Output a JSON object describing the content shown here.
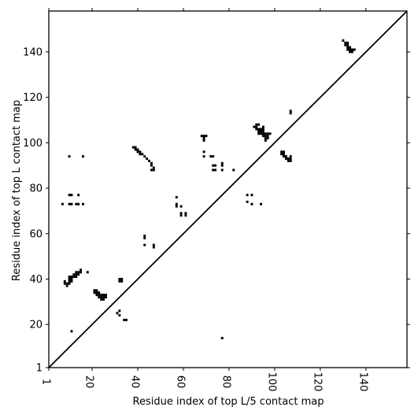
{
  "chart_data": {
    "type": "scatter",
    "xlabel": "Residue index of top L/5 contact map",
    "ylabel": "Residue index of top L contact map",
    "xlim": [
      1,
      158
    ],
    "ylim": [
      1,
      158
    ],
    "xticks": [
      1,
      20,
      40,
      60,
      80,
      100,
      120,
      140
    ],
    "yticks": [
      1,
      20,
      40,
      60,
      80,
      100,
      120,
      140
    ],
    "diagonal": true,
    "marker": "square",
    "color": "#000000",
    "points": [
      [
        7,
        73
      ],
      [
        10,
        73
      ],
      [
        11,
        73
      ],
      [
        13,
        73
      ],
      [
        14,
        73
      ],
      [
        16,
        73
      ],
      [
        10,
        77
      ],
      [
        11,
        77
      ],
      [
        14,
        77
      ],
      [
        10,
        94
      ],
      [
        16,
        94
      ],
      [
        18,
        43
      ],
      [
        8,
        38
      ],
      [
        8,
        39
      ],
      [
        9,
        37
      ],
      [
        9,
        38
      ],
      [
        10,
        38
      ],
      [
        10,
        39
      ],
      [
        10,
        40
      ],
      [
        10,
        41
      ],
      [
        11,
        39
      ],
      [
        11,
        40
      ],
      [
        11,
        41
      ],
      [
        12,
        41
      ],
      [
        12,
        42
      ],
      [
        13,
        41
      ],
      [
        13,
        42
      ],
      [
        13,
        43
      ],
      [
        14,
        42
      ],
      [
        14,
        43
      ],
      [
        15,
        43
      ],
      [
        15,
        44
      ],
      [
        11,
        17
      ],
      [
        21,
        34
      ],
      [
        21,
        35
      ],
      [
        22,
        34
      ],
      [
        22,
        35
      ],
      [
        22,
        33
      ],
      [
        23,
        33
      ],
      [
        23,
        34
      ],
      [
        23,
        32
      ],
      [
        24,
        31
      ],
      [
        24,
        32
      ],
      [
        24,
        33
      ],
      [
        25,
        31
      ],
      [
        25,
        32
      ],
      [
        25,
        33
      ],
      [
        26,
        32
      ],
      [
        26,
        33
      ],
      [
        31,
        25
      ],
      [
        32,
        24
      ],
      [
        32,
        26
      ],
      [
        32,
        39
      ],
      [
        32,
        40
      ],
      [
        33,
        39
      ],
      [
        33,
        40
      ],
      [
        34,
        22
      ],
      [
        35,
        22
      ],
      [
        38,
        98
      ],
      [
        39,
        97
      ],
      [
        39,
        98
      ],
      [
        40,
        96
      ],
      [
        40,
        97
      ],
      [
        41,
        95
      ],
      [
        41,
        96
      ],
      [
        42,
        95
      ],
      [
        43,
        94
      ],
      [
        44,
        93
      ],
      [
        45,
        92
      ],
      [
        46,
        91
      ],
      [
        46,
        90
      ],
      [
        47,
        89
      ],
      [
        47,
        88
      ],
      [
        46,
        88
      ],
      [
        43,
        55
      ],
      [
        43,
        58
      ],
      [
        43,
        59
      ],
      [
        47,
        54
      ],
      [
        47,
        55
      ],
      [
        57,
        76
      ],
      [
        57,
        72
      ],
      [
        57,
        73
      ],
      [
        59,
        72
      ],
      [
        59,
        69
      ],
      [
        59,
        68
      ],
      [
        61,
        68
      ],
      [
        61,
        69
      ],
      [
        68,
        103
      ],
      [
        69,
        103
      ],
      [
        69,
        102
      ],
      [
        69,
        101
      ],
      [
        70,
        103
      ],
      [
        69,
        96
      ],
      [
        69,
        94
      ],
      [
        72,
        94
      ],
      [
        73,
        94
      ],
      [
        73,
        90
      ],
      [
        73,
        88
      ],
      [
        74,
        88
      ],
      [
        74,
        90
      ],
      [
        77,
        91
      ],
      [
        77,
        90
      ],
      [
        77,
        88
      ],
      [
        82,
        88
      ],
      [
        77,
        14
      ],
      [
        88,
        77
      ],
      [
        90,
        77
      ],
      [
        88,
        74
      ],
      [
        90,
        73
      ],
      [
        94,
        73
      ],
      [
        91,
        107
      ],
      [
        92,
        107
      ],
      [
        92,
        108
      ],
      [
        93,
        108
      ],
      [
        92,
        106
      ],
      [
        93,
        106
      ],
      [
        93,
        105
      ],
      [
        94,
        105
      ],
      [
        94,
        104
      ],
      [
        95,
        104
      ],
      [
        95,
        103
      ],
      [
        96,
        103
      ],
      [
        96,
        102
      ],
      [
        93,
        104
      ],
      [
        94,
        106
      ],
      [
        95,
        106
      ],
      [
        95,
        107
      ],
      [
        95,
        105
      ],
      [
        96,
        104
      ],
      [
        96,
        101
      ],
      [
        97,
        104
      ],
      [
        97,
        103
      ],
      [
        98,
        104
      ],
      [
        97,
        102
      ],
      [
        103,
        96
      ],
      [
        104,
        96
      ],
      [
        103,
        95
      ],
      [
        104,
        95
      ],
      [
        104,
        94
      ],
      [
        105,
        94
      ],
      [
        105,
        93
      ],
      [
        106,
        93
      ],
      [
        106,
        92
      ],
      [
        107,
        92
      ],
      [
        107,
        93
      ],
      [
        107,
        94
      ],
      [
        107,
        113
      ],
      [
        107,
        114
      ],
      [
        130,
        145
      ],
      [
        131,
        144
      ],
      [
        132,
        144
      ],
      [
        131,
        143
      ],
      [
        132,
        143
      ],
      [
        132,
        142
      ],
      [
        133,
        142
      ],
      [
        133,
        141
      ],
      [
        134,
        141
      ],
      [
        132,
        141
      ],
      [
        133,
        140
      ],
      [
        134,
        140
      ],
      [
        135,
        141
      ]
    ]
  }
}
